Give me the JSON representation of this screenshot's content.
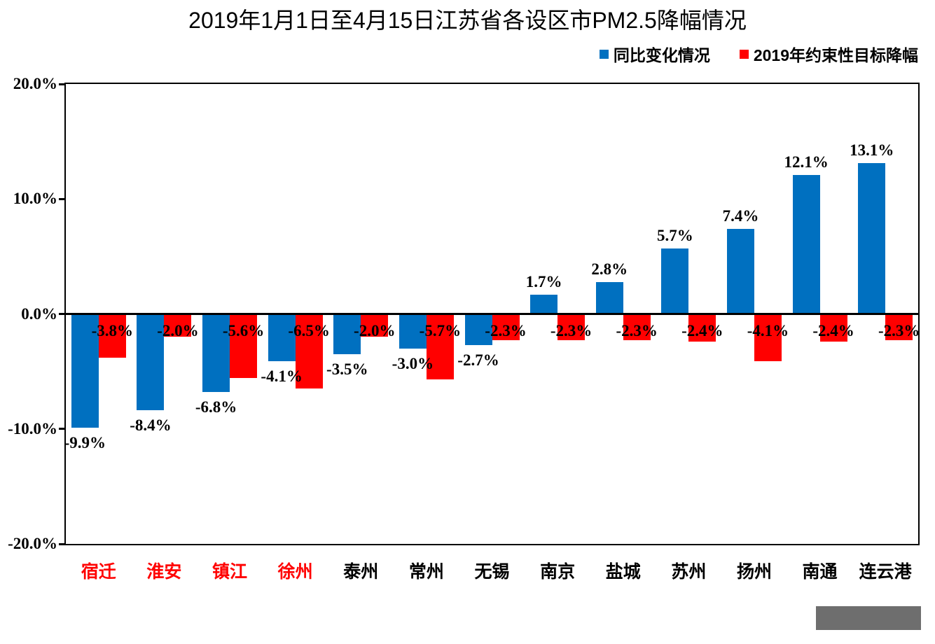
{
  "title": "2019年1月1日至4月15日江苏省各设区市PM2.5降幅情况",
  "legend": {
    "items": [
      {
        "label": "同比变化情况",
        "color": "#0070C0"
      },
      {
        "label": "2019年约束性目标降幅",
        "color": "#FF0000"
      }
    ]
  },
  "chart_data": {
    "type": "bar",
    "title": "2019年1月1日至4月15日江苏省各设区市PM2.5降幅情况",
    "categories": [
      "宿迁",
      "淮安",
      "镇江",
      "徐州",
      "泰州",
      "常州",
      "无锡",
      "南京",
      "盐城",
      "苏州",
      "扬州",
      "南通",
      "连云港"
    ],
    "category_label_colors": [
      "#FF0000",
      "#FF0000",
      "#FF0000",
      "#FF0000",
      "#000000",
      "#000000",
      "#000000",
      "#000000",
      "#000000",
      "#000000",
      "#000000",
      "#000000",
      "#000000"
    ],
    "series": [
      {
        "name": "同比变化情况",
        "color": "#0070C0",
        "values": [
          -9.9,
          -8.4,
          -6.8,
          -4.1,
          -3.5,
          -3.0,
          -2.7,
          1.7,
          2.8,
          5.7,
          7.4,
          12.1,
          13.1
        ],
        "labels": [
          "-9.9%",
          "-8.4%",
          "-6.8%",
          "-4.1%",
          "-3.5%",
          "-3.0%",
          "-2.7%",
          "1.7%",
          "2.8%",
          "5.7%",
          "7.4%",
          "12.1%",
          "13.1%"
        ]
      },
      {
        "name": "2019年约束性目标降幅",
        "color": "#FF0000",
        "values": [
          -3.8,
          -2.0,
          -5.6,
          -6.5,
          -2.0,
          -5.7,
          -2.3,
          -2.3,
          -2.3,
          -2.4,
          -4.1,
          -2.4,
          -2.3
        ],
        "labels": [
          "-3.8%",
          "-2.0%",
          "-5.6%",
          "-6.5%",
          "-2.0%",
          "-5.7%",
          "-2.3%",
          "-2.3%",
          "-2.3%",
          "-2.4%",
          "-4.1%",
          "-2.4%",
          "-2.3%"
        ]
      }
    ],
    "xlabel": "",
    "ylabel": "",
    "ylim": [
      -20,
      20
    ],
    "yticks": [
      {
        "value": 20,
        "label": "20.0%"
      },
      {
        "value": 10,
        "label": "10.0%"
      },
      {
        "value": 0,
        "label": "0.0%"
      },
      {
        "value": -10,
        "label": "-10.0%"
      },
      {
        "value": -20,
        "label": "-20.0%"
      }
    ],
    "grid": false,
    "legend_position": "top-right"
  },
  "decor": {
    "watermark_box_color": "#6E6E6E"
  }
}
